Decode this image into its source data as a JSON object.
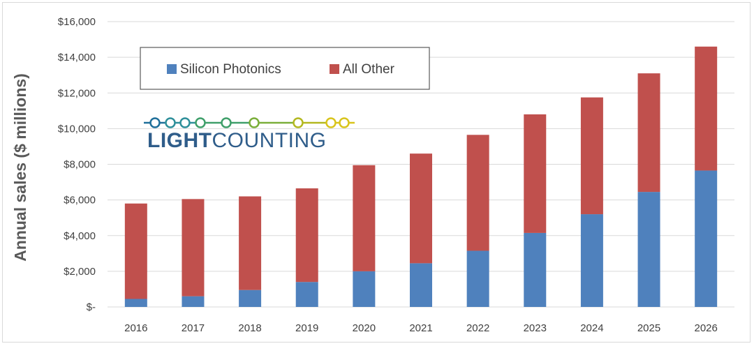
{
  "chart_data": {
    "type": "bar",
    "stacked": true,
    "title": "",
    "xlabel": "",
    "ylabel": "Annual sales ($ millions)",
    "categories": [
      "2016",
      "2017",
      "2018",
      "2019",
      "2020",
      "2021",
      "2022",
      "2023",
      "2024",
      "2025",
      "2026"
    ],
    "series": [
      {
        "name": "Silicon Photonics",
        "color": "#4f81bd",
        "values": [
          450,
          600,
          950,
          1400,
          2000,
          2450,
          3150,
          4150,
          5200,
          6450,
          7650
        ]
      },
      {
        "name": "All Other",
        "color": "#c0504d",
        "values": [
          5350,
          5450,
          5250,
          5250,
          5950,
          6150,
          6500,
          6650,
          6550,
          6650,
          6950
        ]
      }
    ],
    "ylim": [
      0,
      16000
    ],
    "ytick_values": [
      0,
      2000,
      4000,
      6000,
      8000,
      10000,
      12000,
      14000,
      16000
    ],
    "ytick_labels": [
      "$-",
      "$2,000",
      "$4,000",
      "$6,000",
      "$8,000",
      "$10,000",
      "$12,000",
      "$14,000",
      "$16,000"
    ],
    "grid": true,
    "legend_position": "top-left",
    "gridline_color": "#d9d9d9"
  },
  "logo": {
    "text_bold": "LIGHT",
    "text_regular": "COUNTING",
    "colors": [
      "#1f6f9a",
      "#2e8f9a",
      "#3f9f6a",
      "#7aae3a",
      "#b3b820",
      "#d8c41c"
    ]
  }
}
